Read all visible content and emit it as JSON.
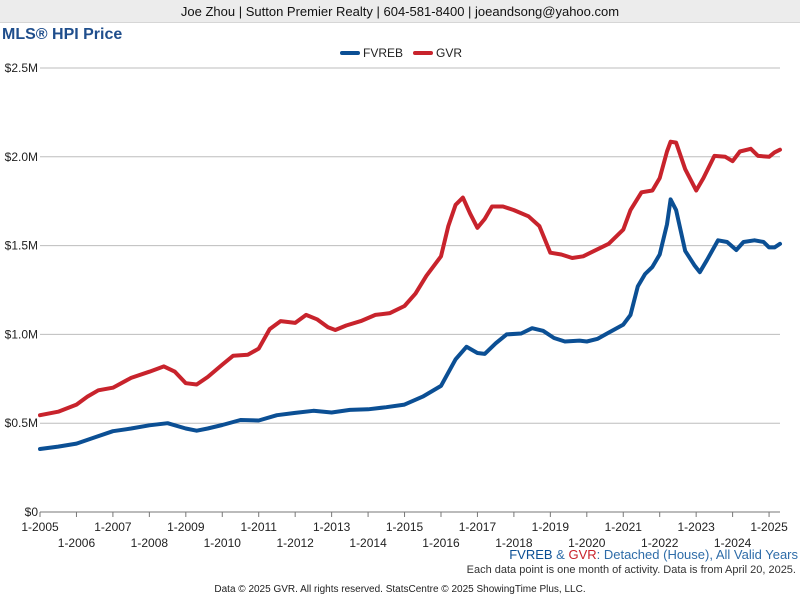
{
  "header": {
    "contact": "Joe Zhou | Sutton Premier Realty | 604-581-8400 | joeandsong@yahoo.com"
  },
  "caption": {
    "series_a": "FVREB",
    "amp": " & ",
    "series_b": "GVR",
    "rest": ": Detached (House), All Valid Years",
    "note": "Each data point is one month of activity. Data is from April 20, 2025."
  },
  "footer": {
    "text": "Data © 2025 GVR. All rights reserved. StatsCentre © 2025 ShowingTime Plus, LLC."
  },
  "colors": {
    "fvreb": "#0b4f94",
    "gvr": "#c8232c",
    "title": "#1f4e8c",
    "grid": "#bdbdbd",
    "caption_text": "#2e6ca8"
  },
  "chart_data": {
    "type": "line",
    "title": "MLS® HPI Price",
    "x_unit": "year (decimal)",
    "xlim": [
      2005,
      2025.3
    ],
    "ylim": [
      0,
      2500000
    ],
    "y_ticks": [
      {
        "value": 0,
        "label": "$0"
      },
      {
        "value": 500000,
        "label": "$0.5M"
      },
      {
        "value": 1000000,
        "label": "$1.0M"
      },
      {
        "value": 1500000,
        "label": "$1.5M"
      },
      {
        "value": 2000000,
        "label": "$2.0M"
      },
      {
        "value": 2500000,
        "label": "$2.5M"
      }
    ],
    "x_ticks_upper": [
      "1-2005",
      "1-2007",
      "1-2009",
      "1-2011",
      "1-2013",
      "1-2015",
      "1-2017",
      "1-2019",
      "1-2021",
      "1-2023",
      "1-2025"
    ],
    "x_ticks_lower": [
      "1-2006",
      "1-2008",
      "1-2010",
      "1-2012",
      "1-2014",
      "1-2016",
      "1-2018",
      "1-2020",
      "1-2022",
      "1-2024"
    ],
    "grid": "horizontal",
    "legend_position": "top-center",
    "series": [
      {
        "name": "FVREB",
        "color": "#0b4f94",
        "points": [
          [
            2005.0,
            355000
          ],
          [
            2005.5,
            368000
          ],
          [
            2006.0,
            385000
          ],
          [
            2006.5,
            420000
          ],
          [
            2007.0,
            455000
          ],
          [
            2007.5,
            470000
          ],
          [
            2008.0,
            488000
          ],
          [
            2008.5,
            500000
          ],
          [
            2009.0,
            470000
          ],
          [
            2009.3,
            458000
          ],
          [
            2009.6,
            470000
          ],
          [
            2010.0,
            490000
          ],
          [
            2010.5,
            518000
          ],
          [
            2011.0,
            515000
          ],
          [
            2011.5,
            545000
          ],
          [
            2012.0,
            558000
          ],
          [
            2012.5,
            570000
          ],
          [
            2013.0,
            560000
          ],
          [
            2013.5,
            575000
          ],
          [
            2014.0,
            578000
          ],
          [
            2014.5,
            590000
          ],
          [
            2015.0,
            605000
          ],
          [
            2015.5,
            650000
          ],
          [
            2016.0,
            710000
          ],
          [
            2016.4,
            860000
          ],
          [
            2016.7,
            930000
          ],
          [
            2017.0,
            895000
          ],
          [
            2017.2,
            890000
          ],
          [
            2017.5,
            950000
          ],
          [
            2017.8,
            1000000
          ],
          [
            2018.2,
            1005000
          ],
          [
            2018.5,
            1035000
          ],
          [
            2018.8,
            1020000
          ],
          [
            2019.1,
            980000
          ],
          [
            2019.4,
            960000
          ],
          [
            2019.8,
            965000
          ],
          [
            2020.0,
            960000
          ],
          [
            2020.3,
            975000
          ],
          [
            2020.6,
            1010000
          ],
          [
            2021.0,
            1055000
          ],
          [
            2021.2,
            1110000
          ],
          [
            2021.4,
            1270000
          ],
          [
            2021.6,
            1340000
          ],
          [
            2021.8,
            1380000
          ],
          [
            2022.0,
            1450000
          ],
          [
            2022.2,
            1620000
          ],
          [
            2022.3,
            1760000
          ],
          [
            2022.45,
            1700000
          ],
          [
            2022.7,
            1470000
          ],
          [
            2022.95,
            1390000
          ],
          [
            2023.1,
            1350000
          ],
          [
            2023.3,
            1420000
          ],
          [
            2023.6,
            1530000
          ],
          [
            2023.85,
            1520000
          ],
          [
            2024.1,
            1475000
          ],
          [
            2024.3,
            1520000
          ],
          [
            2024.6,
            1530000
          ],
          [
            2024.85,
            1520000
          ],
          [
            2025.0,
            1490000
          ],
          [
            2025.15,
            1490000
          ],
          [
            2025.3,
            1510000
          ]
        ]
      },
      {
        "name": "GVR",
        "color": "#c8232c",
        "points": [
          [
            2005.0,
            545000
          ],
          [
            2005.5,
            565000
          ],
          [
            2006.0,
            605000
          ],
          [
            2006.3,
            650000
          ],
          [
            2006.6,
            685000
          ],
          [
            2007.0,
            700000
          ],
          [
            2007.5,
            755000
          ],
          [
            2008.0,
            790000
          ],
          [
            2008.4,
            820000
          ],
          [
            2008.7,
            790000
          ],
          [
            2009.0,
            725000
          ],
          [
            2009.3,
            718000
          ],
          [
            2009.6,
            760000
          ],
          [
            2010.0,
            830000
          ],
          [
            2010.3,
            880000
          ],
          [
            2010.7,
            885000
          ],
          [
            2011.0,
            920000
          ],
          [
            2011.3,
            1030000
          ],
          [
            2011.6,
            1075000
          ],
          [
            2012.0,
            1065000
          ],
          [
            2012.3,
            1110000
          ],
          [
            2012.6,
            1085000
          ],
          [
            2012.9,
            1040000
          ],
          [
            2013.1,
            1025000
          ],
          [
            2013.4,
            1050000
          ],
          [
            2013.8,
            1075000
          ],
          [
            2014.2,
            1110000
          ],
          [
            2014.6,
            1120000
          ],
          [
            2015.0,
            1160000
          ],
          [
            2015.3,
            1230000
          ],
          [
            2015.6,
            1330000
          ],
          [
            2016.0,
            1440000
          ],
          [
            2016.2,
            1610000
          ],
          [
            2016.4,
            1730000
          ],
          [
            2016.6,
            1770000
          ],
          [
            2016.8,
            1680000
          ],
          [
            2017.0,
            1600000
          ],
          [
            2017.2,
            1650000
          ],
          [
            2017.4,
            1720000
          ],
          [
            2017.7,
            1720000
          ],
          [
            2018.0,
            1700000
          ],
          [
            2018.4,
            1665000
          ],
          [
            2018.7,
            1610000
          ],
          [
            2019.0,
            1460000
          ],
          [
            2019.3,
            1450000
          ],
          [
            2019.6,
            1430000
          ],
          [
            2019.9,
            1440000
          ],
          [
            2020.2,
            1470000
          ],
          [
            2020.6,
            1510000
          ],
          [
            2021.0,
            1590000
          ],
          [
            2021.2,
            1700000
          ],
          [
            2021.5,
            1800000
          ],
          [
            2021.8,
            1810000
          ],
          [
            2022.0,
            1880000
          ],
          [
            2022.2,
            2030000
          ],
          [
            2022.3,
            2085000
          ],
          [
            2022.45,
            2080000
          ],
          [
            2022.7,
            1930000
          ],
          [
            2023.0,
            1810000
          ],
          [
            2023.2,
            1880000
          ],
          [
            2023.5,
            2005000
          ],
          [
            2023.8,
            2000000
          ],
          [
            2024.0,
            1975000
          ],
          [
            2024.2,
            2030000
          ],
          [
            2024.5,
            2045000
          ],
          [
            2024.7,
            2005000
          ],
          [
            2025.0,
            2000000
          ],
          [
            2025.15,
            2025000
          ],
          [
            2025.3,
            2040000
          ]
        ]
      }
    ]
  }
}
